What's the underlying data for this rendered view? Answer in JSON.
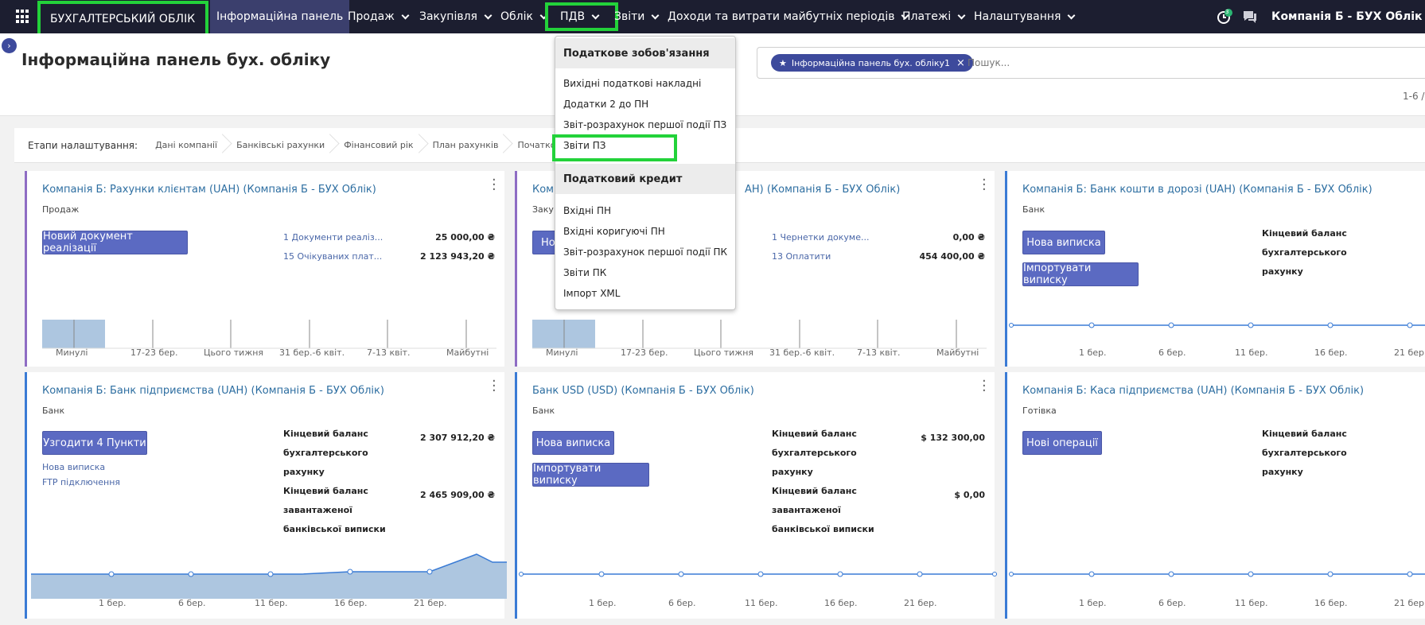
{
  "topbar": {
    "brand": "БУХГАЛТЕРСЬКИЙ ОБЛІК",
    "nav": [
      {
        "label": "Інформаційна панель"
      },
      {
        "label": "Продаж"
      },
      {
        "label": "Закупівля"
      },
      {
        "label": "Облік"
      },
      {
        "label": "ПДВ"
      },
      {
        "label": "Звіти"
      },
      {
        "label": "Доходи та витрати майбутніх періодів"
      },
      {
        "label": "Платежі"
      },
      {
        "label": "Налаштування"
      }
    ],
    "activity_count": "3",
    "company": "Компанія Б - БУХ Облік"
  },
  "page": {
    "title": "Інформаційна панель бух. обліку",
    "facet": "Інформаційна панель бух. обліку1",
    "search_placeholder": "Пошук...",
    "pager": "1-6 /"
  },
  "steps": {
    "label": "Етапи налаштування:",
    "items": [
      "Дані компанії",
      "Банківські рахунки",
      "Фінансовий рік",
      "План рахунків",
      "Початков"
    ]
  },
  "dropdown": {
    "sections": [
      {
        "title": "Податкове зобов'язання",
        "items": [
          "Вихідні податкові накладні",
          "Додатки 2 до ПН",
          "Звіт-розрахунок першої події ПЗ",
          "Звіти ПЗ"
        ]
      },
      {
        "title": "Податковий кредит",
        "items": [
          "Вхідні ПН",
          "Вхідні коригуючі ПН",
          "Звіт-розрахунок першої події ПК",
          "Звіти ПК",
          "Імпорт XML"
        ]
      }
    ]
  },
  "cards": {
    "c1": {
      "title": "Компанія Б: Рахунки клієнтам (UAH) (Компанія Б - БУХ Облік)",
      "type": "Продаж",
      "button": "Новий документ реалізації",
      "links": [
        "1 Документи реаліз...",
        "15 Очікуваних плат..."
      ],
      "values": [
        "25 000,00 ₴",
        "2 123 943,20 ₴"
      ],
      "bars": [
        "Минулі",
        "17-23 бер.",
        "Цього тижня",
        "31 бер.-6 квіт.",
        "7-13 квіт.",
        "Майбутні"
      ]
    },
    "c2": {
      "title": "Комп",
      "title_tail": "АН) (Компанія Б - БУХ Облік)",
      "type": "Закуп",
      "button": "Но",
      "links": [
        "1 Чернетки докуме...",
        "13 Оплатити"
      ],
      "values": [
        "0,00 ₴",
        "454 400,00 ₴"
      ],
      "bars": [
        "Минулі",
        "17-23 бер.",
        "Цього тижня",
        "31 бер.-6 квіт.",
        "7-13 квіт.",
        "Майбутні"
      ]
    },
    "c3": {
      "title": "Компанія Б: Банк кошти в дорозі (UAH) (Компанія Б - БУХ Облік)",
      "type": "Банк",
      "button1": "Нова виписка",
      "button2": "Імпортувати виписку",
      "balance_label": [
        "Кінцевий баланс",
        "бухгалтерського",
        "рахунку"
      ],
      "x": [
        "1 бер.",
        "6 бер.",
        "11 бер.",
        "16 бер.",
        "21 бер."
      ]
    },
    "c4": {
      "title": "Компанія Б: Банк підприємства (UAH) (Компанія Б - БУХ Облік)",
      "type": "Банк",
      "button": "Узгодити 4 Пункти",
      "links": [
        "Нова виписка",
        "FTP підключення"
      ],
      "balance_label": [
        "Кінцевий баланс",
        "бухгалтерського",
        "рахунку"
      ],
      "balance_value": "2 307 912,20 ₴",
      "stmt_label": [
        "Кінцевий баланс",
        "завантаженої",
        "банківської виписки"
      ],
      "stmt_value": "2 465 909,00 ₴",
      "x": [
        "1 бер.",
        "6 бер.",
        "11 бер.",
        "16 бер.",
        "21 бер."
      ]
    },
    "c5": {
      "title": "Банк USD (USD) (Компанія Б - БУХ Облік)",
      "type": "Банк",
      "button1": "Нова виписка",
      "button2": "Імпортувати виписку",
      "balance_label": [
        "Кінцевий баланс",
        "бухгалтерського",
        "рахунку"
      ],
      "balance_value": "$ 132 300,00",
      "stmt_label": [
        "Кінцевий баланс",
        "завантаженої",
        "банківської виписки"
      ],
      "stmt_value": "$ 0,00",
      "x": [
        "1 бер.",
        "6 бер.",
        "11 бер.",
        "16 бер.",
        "21 бер."
      ]
    },
    "c6": {
      "title": "Компанія Б: Каса підприємства (UAH) (Компанія Б - БУХ Облік)",
      "type": "Готівка",
      "button": "Нові операції",
      "balance_label": [
        "Кінцевий баланс",
        "бухгалтерського",
        "рахунку"
      ],
      "x": [
        "1 бер.",
        "6 бер.",
        "11 бер.",
        "16 бер.",
        "21 бер."
      ]
    }
  },
  "colors": {
    "topbar": "#1c1e30",
    "accent": "#5b6ac2",
    "highlight": "#23d23a",
    "bar": "#adc6e0"
  }
}
